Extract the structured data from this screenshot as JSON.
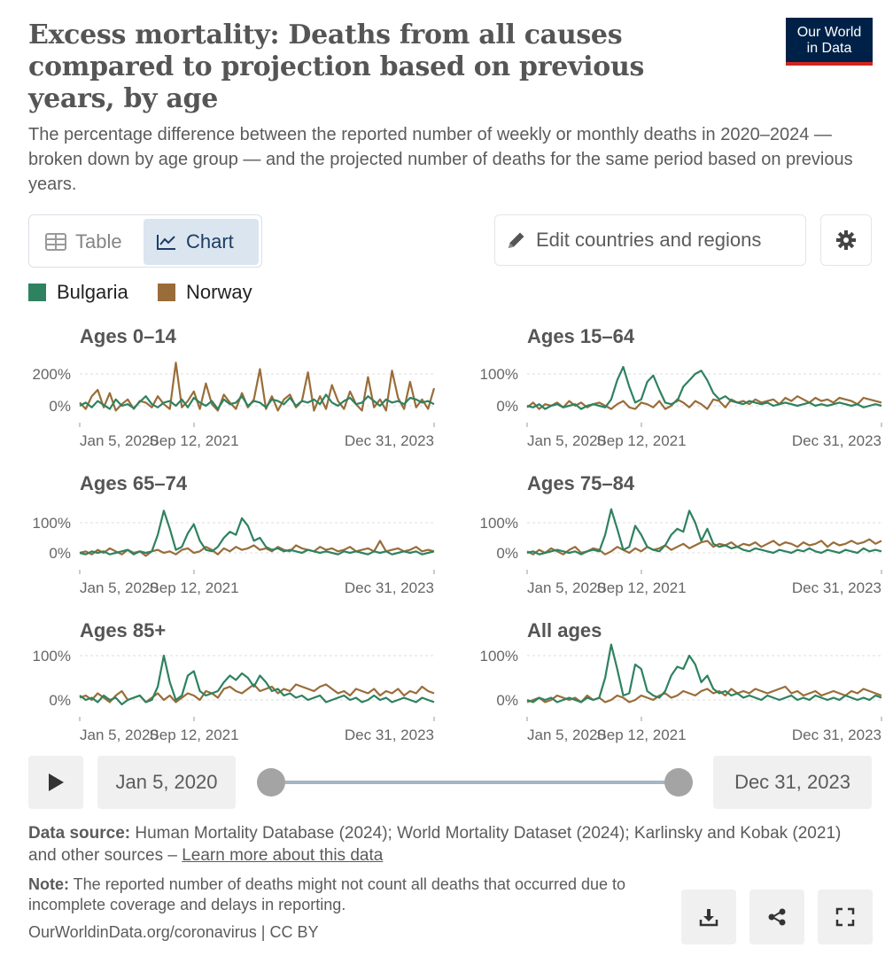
{
  "header": {
    "title": "Excess mortality: Deaths from all causes compared to projection based on previous years, by age",
    "subtitle": "The percentage difference between the reported number of weekly or monthly deaths in 2020–2024 — broken down by age group — and the projected number of deaths for the same period based on previous years.",
    "logo_line1": "Our World",
    "logo_line2": "in Data"
  },
  "toolbar": {
    "tab_table": "Table",
    "tab_chart": "Chart",
    "edit_button": "Edit countries and regions"
  },
  "legend": [
    {
      "name": "Bulgaria",
      "color": "#2e8260"
    },
    {
      "name": "Norway",
      "color": "#996d39"
    }
  ],
  "chart_data": [
    {
      "type": "line",
      "title": "Ages 0–14",
      "x_ticks": [
        "Jan 5, 2020",
        "Sep 12, 2021",
        "Dec 31, 2023"
      ],
      "y_ticks": [
        "200%",
        "0%"
      ],
      "ylim": [
        -40,
        270
      ],
      "series": [
        {
          "name": "Bulgaria",
          "values": [
            0,
            20,
            -10,
            30,
            5,
            -20,
            40,
            0,
            10,
            -15,
            25,
            60,
            10,
            -10,
            20,
            30,
            0,
            40,
            -10,
            50,
            20,
            0,
            30,
            -20,
            40,
            10,
            20,
            60,
            0,
            30,
            20,
            -10,
            40,
            30,
            10,
            50,
            0,
            30,
            20,
            40,
            10,
            70,
            20,
            0,
            30,
            50,
            10,
            20,
            60,
            30,
            0,
            40,
            20,
            30,
            10,
            50,
            40,
            20,
            30,
            10
          ]
        },
        {
          "name": "Norway",
          "values": [
            20,
            -20,
            60,
            100,
            -10,
            80,
            -30,
            10,
            40,
            -20,
            30,
            20,
            -10,
            60,
            10,
            -20,
            290,
            -10,
            30,
            90,
            -20,
            140,
            10,
            -30,
            70,
            20,
            -20,
            80,
            -10,
            40,
            230,
            -20,
            60,
            -30,
            40,
            70,
            -10,
            30,
            210,
            -30,
            60,
            -20,
            130,
            30,
            -20,
            90,
            10,
            -30,
            180,
            -10,
            40,
            -30,
            220,
            50,
            -20,
            150,
            -10,
            40,
            -20,
            110
          ]
        }
      ]
    },
    {
      "type": "line",
      "title": "Ages 15–64",
      "x_ticks": [
        "Jan 5, 2020",
        "Sep 12, 2021",
        "Dec 31, 2023"
      ],
      "y_ticks": [
        "100%",
        "0%"
      ],
      "ylim": [
        -25,
        125
      ],
      "series": [
        {
          "name": "Bulgaria",
          "values": [
            0,
            -5,
            5,
            -10,
            0,
            5,
            -5,
            0,
            5,
            -10,
            0,
            5,
            0,
            -5,
            20,
            80,
            122,
            60,
            10,
            20,
            75,
            95,
            50,
            10,
            5,
            15,
            60,
            80,
            100,
            110,
            80,
            40,
            20,
            30,
            15,
            10,
            5,
            15,
            10,
            5,
            10,
            0,
            5,
            10,
            5,
            0,
            5,
            10,
            0,
            5,
            0,
            5,
            10,
            5,
            0,
            5,
            -5,
            0,
            5,
            0
          ]
        },
        {
          "name": "Norway",
          "values": [
            -5,
            10,
            -10,
            5,
            0,
            10,
            -5,
            15,
            0,
            10,
            -5,
            5,
            10,
            0,
            -10,
            5,
            15,
            -5,
            -10,
            10,
            5,
            -5,
            15,
            -10,
            0,
            20,
            10,
            -5,
            15,
            5,
            -10,
            20,
            15,
            -5,
            20,
            10,
            15,
            5,
            20,
            10,
            15,
            20,
            5,
            25,
            15,
            30,
            20,
            10,
            25,
            15,
            20,
            10,
            25,
            20,
            15,
            5,
            25,
            20,
            15,
            10
          ]
        }
      ]
    },
    {
      "type": "line",
      "title": "Ages 65–74",
      "x_ticks": [
        "Jan 5, 2020",
        "Sep 12, 2021",
        "Dec 31, 2023"
      ],
      "y_ticks": [
        "100%",
        "0%"
      ],
      "ylim": [
        -20,
        145
      ],
      "series": [
        {
          "name": "Bulgaria",
          "values": [
            0,
            -5,
            5,
            0,
            5,
            -5,
            0,
            5,
            10,
            -5,
            5,
            0,
            5,
            60,
            140,
            80,
            10,
            20,
            65,
            95,
            40,
            10,
            5,
            20,
            50,
            70,
            60,
            115,
            90,
            40,
            50,
            20,
            10,
            15,
            5,
            10,
            5,
            0,
            10,
            5,
            0,
            5,
            0,
            -5,
            5,
            0,
            5,
            0,
            -5,
            5,
            0,
            5,
            -5,
            0,
            5,
            0,
            5,
            -5,
            0,
            5
          ]
        },
        {
          "name": "Norway",
          "values": [
            0,
            5,
            -5,
            10,
            0,
            15,
            5,
            -5,
            10,
            0,
            5,
            -10,
            5,
            10,
            0,
            5,
            -5,
            10,
            15,
            0,
            5,
            20,
            10,
            -5,
            15,
            5,
            20,
            10,
            15,
            25,
            10,
            15,
            5,
            20,
            10,
            5,
            25,
            15,
            10,
            5,
            20,
            10,
            15,
            5,
            10,
            20,
            5,
            10,
            15,
            5,
            40,
            5,
            10,
            15,
            5,
            10,
            20,
            5,
            10,
            5
          ]
        }
      ]
    },
    {
      "type": "line",
      "title": "Ages 75–84",
      "x_ticks": [
        "Jan 5, 2020",
        "Sep 12, 2021",
        "Dec 31, 2023"
      ],
      "y_ticks": [
        "100%",
        "0%"
      ],
      "ylim": [
        -20,
        145
      ],
      "series": [
        {
          "name": "Bulgaria",
          "values": [
            0,
            5,
            -5,
            0,
            5,
            10,
            5,
            0,
            5,
            -5,
            5,
            10,
            5,
            60,
            145,
            80,
            10,
            20,
            90,
            60,
            20,
            10,
            5,
            25,
            60,
            80,
            70,
            140,
            100,
            40,
            80,
            30,
            20,
            25,
            15,
            20,
            10,
            5,
            15,
            10,
            5,
            0,
            10,
            5,
            0,
            10,
            5,
            15,
            5,
            0,
            10,
            5,
            0,
            10,
            5,
            0,
            15,
            5,
            10,
            5
          ]
        },
        {
          "name": "Norway",
          "values": [
            5,
            -5,
            10,
            0,
            15,
            5,
            -5,
            10,
            20,
            0,
            5,
            15,
            10,
            -5,
            5,
            20,
            10,
            0,
            15,
            5,
            20,
            10,
            15,
            25,
            10,
            20,
            30,
            15,
            25,
            35,
            40,
            20,
            30,
            25,
            35,
            20,
            30,
            25,
            35,
            20,
            30,
            40,
            25,
            35,
            30,
            20,
            35,
            25,
            30,
            40,
            20,
            35,
            25,
            30,
            40,
            30,
            35,
            45,
            30,
            40
          ]
        }
      ]
    },
    {
      "type": "line",
      "title": "Ages 85+",
      "x_ticks": [
        "Jan 5, 2020",
        "Sep 12, 2021",
        "Dec 31, 2023"
      ],
      "y_ticks": [
        "100%",
        "0%"
      ],
      "ylim": [
        -20,
        110
      ],
      "series": [
        {
          "name": "Bulgaria",
          "values": [
            10,
            0,
            5,
            -5,
            10,
            0,
            5,
            -10,
            0,
            5,
            10,
            -5,
            0,
            30,
            100,
            40,
            0,
            10,
            55,
            65,
            20,
            10,
            15,
            20,
            40,
            55,
            45,
            60,
            50,
            30,
            55,
            40,
            20,
            25,
            10,
            15,
            5,
            10,
            0,
            5,
            10,
            -5,
            0,
            5,
            10,
            0,
            5,
            -5,
            0,
            10,
            0,
            5,
            -5,
            0,
            5,
            0,
            -5,
            5,
            0,
            -5
          ]
        },
        {
          "name": "Norway",
          "values": [
            5,
            10,
            0,
            15,
            5,
            -5,
            10,
            20,
            0,
            5,
            10,
            -5,
            5,
            15,
            0,
            10,
            -5,
            5,
            15,
            10,
            0,
            20,
            15,
            5,
            25,
            30,
            20,
            15,
            25,
            35,
            20,
            25,
            30,
            15,
            25,
            20,
            35,
            30,
            25,
            20,
            30,
            35,
            25,
            15,
            20,
            10,
            25,
            20,
            15,
            25,
            10,
            20,
            15,
            25,
            10,
            20,
            15,
            30,
            20,
            15
          ]
        }
      ]
    },
    {
      "type": "line",
      "title": "All ages",
      "x_ticks": [
        "Jan 5, 2020",
        "Sep 12, 2021",
        "Dec 31, 2023"
      ],
      "y_ticks": [
        "100%",
        "0%"
      ],
      "ylim": [
        -20,
        140
      ],
      "series": [
        {
          "name": "Bulgaria",
          "values": [
            0,
            -5,
            5,
            0,
            5,
            -5,
            0,
            5,
            0,
            -5,
            5,
            0,
            5,
            50,
            125,
            70,
            10,
            15,
            80,
            70,
            20,
            10,
            5,
            20,
            55,
            75,
            70,
            100,
            80,
            40,
            55,
            25,
            15,
            20,
            10,
            15,
            5,
            10,
            5,
            0,
            10,
            5,
            0,
            5,
            10,
            0,
            5,
            0,
            10,
            5,
            0,
            5,
            0,
            10,
            5,
            0,
            5,
            0,
            10,
            5
          ]
        },
        {
          "name": "Norway",
          "values": [
            -5,
            0,
            5,
            -5,
            0,
            10,
            5,
            0,
            5,
            -5,
            10,
            0,
            5,
            -5,
            0,
            10,
            5,
            -5,
            0,
            10,
            5,
            0,
            10,
            15,
            5,
            10,
            20,
            15,
            10,
            20,
            25,
            15,
            20,
            10,
            25,
            15,
            20,
            15,
            25,
            20,
            15,
            20,
            25,
            30,
            15,
            20,
            10,
            15,
            20,
            10,
            15,
            20,
            15,
            10,
            20,
            15,
            25,
            20,
            15,
            10
          ]
        }
      ]
    }
  ],
  "timeline": {
    "start_label": "Jan 5, 2020",
    "end_label": "Dec 31, 2023"
  },
  "footer": {
    "source_label": "Data source:",
    "source_text": " Human Mortality Database (2024); World Mortality Dataset (2024); Karlinsky and Kobak (2021) and other sources – ",
    "source_link": "Learn more about this data",
    "note_label": "Note:",
    "note_text": " The reported number of deaths might not count all deaths that occurred due to incomplete coverage and delays in reporting.",
    "license": "OurWorldinData.org/coronavirus | CC BY"
  }
}
